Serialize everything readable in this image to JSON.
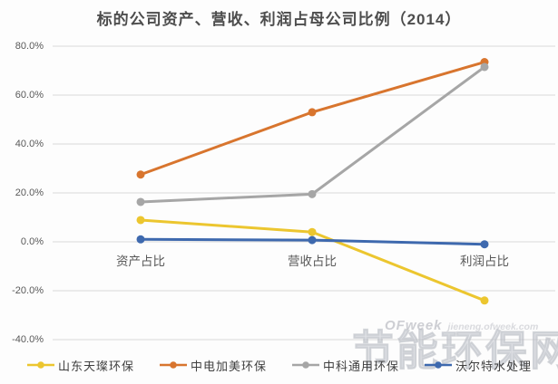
{
  "chart_data": {
    "type": "line",
    "title": "标的公司资产、营收、利润占母公司比例（2014）",
    "categories": [
      "资产占比",
      "营收占比",
      "利润占比"
    ],
    "series": [
      {
        "name": "山东天璨环保",
        "color": "#ecc62f",
        "values": [
          8.9,
          4.0,
          -24.0
        ]
      },
      {
        "name": "中电加美环保",
        "color": "#d8752e",
        "values": [
          27.5,
          53.0,
          73.5
        ]
      },
      {
        "name": "中科通用环保",
        "color": "#a6a6a6",
        "values": [
          16.3,
          19.5,
          71.5
        ]
      },
      {
        "name": "沃尔特水处理",
        "color": "#3e69ae",
        "values": [
          1.0,
          0.7,
          -1.0
        ]
      }
    ],
    "unit": "%",
    "y_axis": {
      "min": -40,
      "max": 80,
      "ticks": [
        {
          "label": "80.0%",
          "value": 80
        },
        {
          "label": "60.0%",
          "value": 60
        },
        {
          "label": "40.0%",
          "value": 40
        },
        {
          "label": "20.0%",
          "value": 20
        },
        {
          "label": "0.0%",
          "value": 0
        },
        {
          "label": "-20.0%",
          "value": -20
        },
        {
          "label": "-40.0%",
          "value": -40
        }
      ]
    },
    "grid": true,
    "legend_position": "bottom"
  },
  "watermark": {
    "brand": "OFweek",
    "small_text": "jieneng.ofweek.com",
    "big_text": "节能环保网"
  },
  "colors": {
    "gridline": "#d9d9d9",
    "title_text": "#4d4d4d",
    "axis_text": "#595959",
    "legend_text": "#404040",
    "background": "#fdfdfd"
  }
}
